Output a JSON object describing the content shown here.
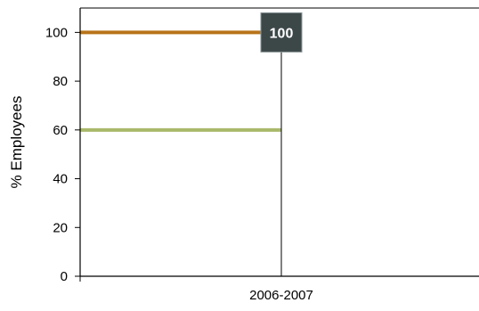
{
  "chart_data": {
    "type": "line",
    "title": "",
    "xlabel": "",
    "ylabel": "% Employees",
    "categories": [
      "2006-2007"
    ],
    "ylim": [
      0,
      110
    ],
    "yticks": [
      0,
      20,
      40,
      60,
      80,
      100
    ],
    "grid": false,
    "legend": "none",
    "series": [
      {
        "values": [
          100
        ],
        "color": "#b8741a"
      },
      {
        "values": [
          60
        ],
        "color": "#a9b86a"
      }
    ],
    "annotation": {
      "label": "100",
      "value": 100,
      "bg_color": "#3c4748"
    },
    "colors": {
      "axis": "#000000",
      "callout_border": "#8a9697"
    }
  }
}
